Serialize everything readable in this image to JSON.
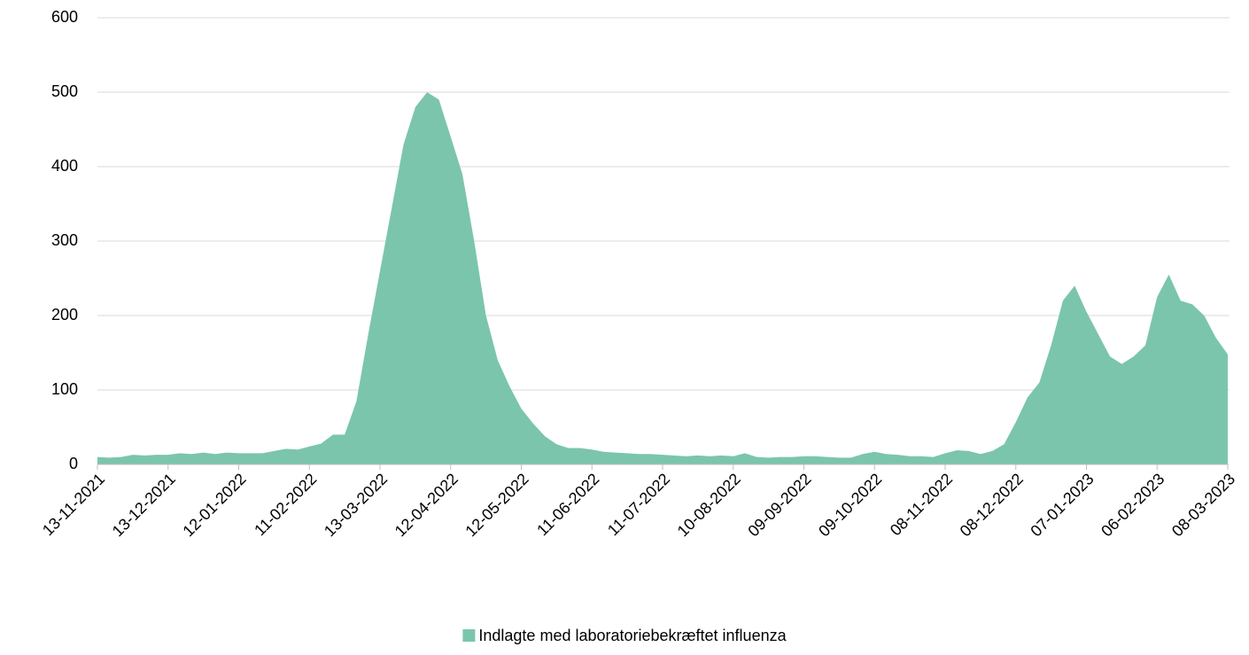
{
  "chart_data": {
    "type": "area",
    "x": [
      "13-11-2021",
      "18-11-2021",
      "23-11-2021",
      "28-11-2021",
      "03-12-2021",
      "08-12-2021",
      "13-12-2021",
      "18-12-2021",
      "23-12-2021",
      "28-12-2021",
      "02-01-2022",
      "07-01-2022",
      "12-01-2022",
      "17-01-2022",
      "22-01-2022",
      "27-01-2022",
      "01-02-2022",
      "06-02-2022",
      "11-02-2022",
      "16-02-2022",
      "21-02-2022",
      "26-02-2022",
      "03-03-2022",
      "08-03-2022",
      "13-03-2022",
      "18-03-2022",
      "23-03-2022",
      "28-03-2022",
      "02-04-2022",
      "07-04-2022",
      "12-04-2022",
      "17-04-2022",
      "22-04-2022",
      "27-04-2022",
      "02-05-2022",
      "07-05-2022",
      "12-05-2022",
      "17-05-2022",
      "22-05-2022",
      "27-05-2022",
      "01-06-2022",
      "06-06-2022",
      "11-06-2022",
      "16-06-2022",
      "21-06-2022",
      "26-06-2022",
      "01-07-2022",
      "06-07-2022",
      "11-07-2022",
      "16-07-2022",
      "21-07-2022",
      "26-07-2022",
      "31-07-2022",
      "05-08-2022",
      "10-08-2022",
      "15-08-2022",
      "20-08-2022",
      "25-08-2022",
      "30-08-2022",
      "04-09-2022",
      "09-09-2022",
      "14-09-2022",
      "19-09-2022",
      "24-09-2022",
      "29-09-2022",
      "04-10-2022",
      "09-10-2022",
      "14-10-2022",
      "19-10-2022",
      "24-10-2022",
      "29-10-2022",
      "03-11-2022",
      "08-11-2022",
      "13-11-2022",
      "18-11-2022",
      "23-11-2022",
      "28-11-2022",
      "03-12-2022",
      "08-12-2022",
      "13-12-2022",
      "18-12-2022",
      "23-12-2022",
      "28-12-2022",
      "02-01-2023",
      "07-01-2023",
      "12-01-2023",
      "17-01-2023",
      "22-01-2023",
      "27-01-2023",
      "01-02-2023",
      "06-02-2023",
      "11-02-2023",
      "16-02-2023",
      "21-02-2023",
      "26-02-2023",
      "03-03-2023",
      "08-03-2023"
    ],
    "series": [
      {
        "name": "Indlagte med laboratoriebekræftet influenza",
        "color": "#7bc5ad",
        "values": [
          10,
          9,
          10,
          13,
          12,
          13,
          13,
          15,
          14,
          16,
          14,
          16,
          15,
          15,
          15,
          18,
          21,
          20,
          24,
          28,
          40,
          40,
          85,
          175,
          260,
          345,
          430,
          480,
          500,
          490,
          440,
          390,
          300,
          200,
          140,
          105,
          75,
          55,
          38,
          27,
          22,
          22,
          20,
          17,
          16,
          15,
          14,
          14,
          13,
          12,
          11,
          12,
          11,
          12,
          11,
          15,
          10,
          9,
          10,
          10,
          11,
          11,
          10,
          9,
          9,
          14,
          17,
          14,
          13,
          11,
          11,
          10,
          15,
          19,
          18,
          14,
          18,
          27,
          57,
          90,
          110,
          160,
          220,
          240,
          205,
          175,
          145,
          135,
          145,
          160,
          225,
          255,
          220,
          215,
          200,
          170,
          148
        ]
      }
    ],
    "xlim": [
      "13-11-2021",
      "08-03-2023"
    ],
    "xticks": [
      "13-11-2021",
      "13-12-2021",
      "12-01-2022",
      "11-02-2022",
      "13-03-2022",
      "12-04-2022",
      "12-05-2022",
      "11-06-2022",
      "11-07-2022",
      "10-08-2022",
      "09-09-2022",
      "09-10-2022",
      "08-11-2022",
      "08-12-2022",
      "07-01-2023",
      "06-02-2023",
      "08-03-2023"
    ],
    "ylim": [
      0,
      600
    ],
    "yticks": [
      0,
      100,
      200,
      300,
      400,
      500,
      600
    ],
    "grid": true,
    "legend": "bottom"
  }
}
